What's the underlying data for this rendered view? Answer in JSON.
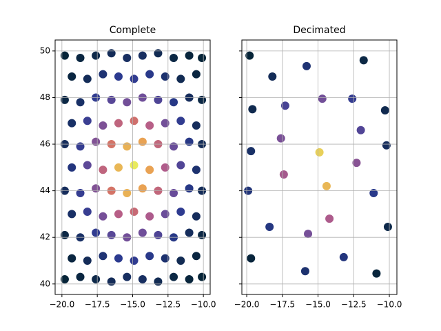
{
  "chart_data": [
    {
      "type": "scatter",
      "title": "Complete",
      "x": [
        -19.8,
        -18.7,
        -17.6,
        -16.5,
        -15.4,
        -14.3,
        -13.2,
        -12.1,
        -11.0,
        -10.1,
        -19.3,
        -18.2,
        -17.1,
        -16.0,
        -14.9,
        -13.8,
        -12.7,
        -11.6,
        -10.5,
        -19.8,
        -18.7,
        -17.6,
        -16.5,
        -15.4,
        -14.3,
        -13.2,
        -12.1,
        -11.0,
        -10.1,
        -19.3,
        -18.2,
        -17.1,
        -16.0,
        -14.9,
        -13.8,
        -12.7,
        -11.6,
        -10.5,
        -19.8,
        -18.7,
        -17.6,
        -16.5,
        -15.4,
        -14.3,
        -13.2,
        -12.1,
        -11.0,
        -10.1,
        -19.3,
        -18.2,
        -17.1,
        -16.0,
        -14.9,
        -13.8,
        -12.7,
        -11.6,
        -10.5,
        -19.8,
        -18.7,
        -17.6,
        -16.5,
        -15.4,
        -14.3,
        -13.2,
        -12.1,
        -11.0,
        -10.1,
        -19.3,
        -18.2,
        -17.1,
        -16.0,
        -14.9,
        -13.8,
        -12.7,
        -11.6,
        -10.5,
        -19.8,
        -18.7,
        -17.6,
        -16.5,
        -15.4,
        -14.3,
        -13.2,
        -12.1,
        -11.0,
        -10.1,
        -19.3,
        -18.2,
        -17.1,
        -16.0,
        -14.9,
        -13.8,
        -12.7,
        -11.6,
        -10.5,
        -19.8,
        -18.7,
        -17.6,
        -16.5,
        -15.4,
        -14.3,
        -13.2,
        -12.1,
        -11.0,
        -10.1
      ],
      "values": [
        40.2,
        40.3,
        40.2,
        40.1,
        40.3,
        40.2,
        40.1,
        40.3,
        40.2,
        40.3,
        41.1,
        41.0,
        41.2,
        41.1,
        41.0,
        41.2,
        41.1,
        41.0,
        41.2,
        42.1,
        42.0,
        42.2,
        42.1,
        42.0,
        42.2,
        42.1,
        42.0,
        42.2,
        42.1,
        43.0,
        43.1,
        42.9,
        43.0,
        43.1,
        42.9,
        43.0,
        43.1,
        42.9,
        44.0,
        43.9,
        44.1,
        44.0,
        43.9,
        44.1,
        44.0,
        43.9,
        44.1,
        44.0,
        45.0,
        45.1,
        44.9,
        45.0,
        45.1,
        44.9,
        45.0,
        45.1,
        44.9,
        46.0,
        45.9,
        46.1,
        46.0,
        45.9,
        46.1,
        46.0,
        45.9,
        46.1,
        46.0,
        46.9,
        47.0,
        46.8,
        46.9,
        47.0,
        46.8,
        46.9,
        47.0,
        46.8,
        47.9,
        47.8,
        48.0,
        47.9,
        47.8,
        48.0,
        47.9,
        47.8,
        48.0,
        47.9,
        48.9,
        48.8,
        49.0,
        48.9,
        48.8,
        49.0,
        48.9,
        48.8,
        49.0,
        49.8,
        49.7,
        49.8,
        49.9,
        49.7,
        49.8,
        49.9,
        49.7,
        49.8,
        49.7
      ],
      "c": [
        0.01,
        0.03,
        0.05,
        0.08,
        0.1,
        0.1,
        0.07,
        0.04,
        0.02,
        0.01,
        0.03,
        0.08,
        0.14,
        0.2,
        0.22,
        0.19,
        0.13,
        0.07,
        0.03,
        0.04,
        0.11,
        0.22,
        0.34,
        0.42,
        0.41,
        0.31,
        0.18,
        0.09,
        0.04,
        0.11,
        0.24,
        0.43,
        0.61,
        0.67,
        0.58,
        0.4,
        0.21,
        0.09,
        0.09,
        0.23,
        0.46,
        0.72,
        0.89,
        0.86,
        0.65,
        0.39,
        0.18,
        0.08,
        0.16,
        0.36,
        0.64,
        0.9,
        1.0,
        0.86,
        0.59,
        0.32,
        0.13,
        0.09,
        0.23,
        0.46,
        0.72,
        0.89,
        0.86,
        0.65,
        0.39,
        0.18,
        0.08,
        0.11,
        0.25,
        0.45,
        0.64,
        0.7,
        0.61,
        0.42,
        0.22,
        0.09,
        0.04,
        0.11,
        0.22,
        0.34,
        0.42,
        0.41,
        0.31,
        0.18,
        0.09,
        0.04,
        0.03,
        0.08,
        0.14,
        0.2,
        0.22,
        0.19,
        0.13,
        0.07,
        0.03,
        0.01,
        0.03,
        0.05,
        0.08,
        0.1,
        0.1,
        0.07,
        0.04,
        0.02,
        0.01
      ],
      "cmap": [
        "#042333",
        "#2b3a8f",
        "#6b4d9a",
        "#b45d8a",
        "#e9834f",
        "#e8ea5c"
      ],
      "xlim": [
        -20.48,
        -9.52
      ],
      "ylim": [
        39.55,
        50.47
      ],
      "xticks": [
        {
          "value": -20,
          "label": "−20.0"
        },
        {
          "value": -17.5,
          "label": "−17.5"
        },
        {
          "value": -15,
          "label": "−15.0"
        },
        {
          "value": -12.5,
          "label": "−12.5"
        },
        {
          "value": -10,
          "label": "−10.0"
        }
      ],
      "yticks": [
        40,
        42,
        44,
        46,
        48,
        50
      ],
      "ytick_labels": true,
      "grid": true
    },
    {
      "type": "scatter",
      "title": "Decimated",
      "x": [
        -19.8,
        -18.2,
        -15.8,
        -11.8,
        -19.6,
        -17.3,
        -14.7,
        -12.6,
        -10.3,
        -17.6,
        -12.0,
        -19.7,
        -14.9,
        -10.2,
        -17.4,
        -12.3,
        -19.9,
        -14.4,
        -11.1,
        -18.4,
        -14.2,
        -10.1,
        -15.7,
        -19.7,
        -13.2,
        -15.9,
        -10.9
      ],
      "values": [
        49.8,
        48.9,
        49.35,
        49.6,
        47.5,
        47.65,
        47.95,
        47.95,
        47.45,
        46.25,
        46.6,
        45.7,
        45.65,
        45.95,
        44.7,
        45.2,
        44.0,
        44.2,
        43.9,
        42.45,
        42.8,
        42.45,
        42.15,
        41.1,
        41.15,
        40.55,
        40.45
      ],
      "c": [
        0.01,
        0.08,
        0.14,
        0.04,
        0.06,
        0.29,
        0.42,
        0.23,
        0.06,
        0.44,
        0.32,
        0.11,
        0.95,
        0.09,
        0.56,
        0.48,
        0.15,
        0.9,
        0.19,
        0.17,
        0.58,
        0.05,
        0.43,
        0.02,
        0.16,
        0.13,
        0.02
      ],
      "cmap": [
        "#042333",
        "#2b3a8f",
        "#6b4d9a",
        "#b45d8a",
        "#e9834f",
        "#e8ea5c"
      ],
      "xlim": [
        -20.34,
        -9.47
      ],
      "ylim": [
        39.55,
        50.47
      ],
      "xticks": [
        {
          "value": -20,
          "label": "−20.0"
        },
        {
          "value": -17.5,
          "label": "−17.5"
        },
        {
          "value": -15,
          "label": "−15.0"
        },
        {
          "value": -12.5,
          "label": "−12.5"
        },
        {
          "value": -10,
          "label": "−10.0"
        }
      ],
      "yticks": [
        40,
        42,
        44,
        46,
        48,
        50
      ],
      "ytick_labels": false,
      "grid": true
    }
  ]
}
